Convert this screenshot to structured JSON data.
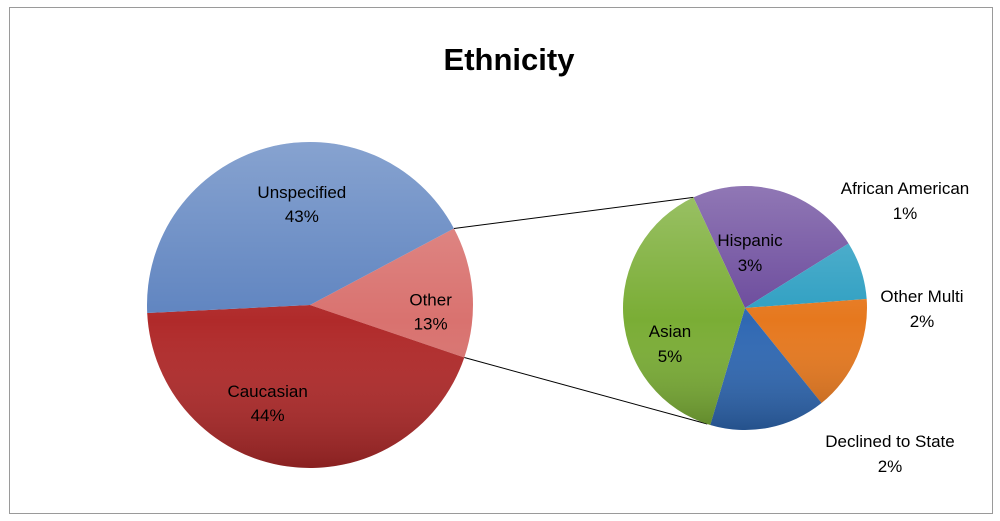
{
  "chart_data": {
    "type": "pie",
    "variant": "pie-of-pie",
    "title": "Ethnicity",
    "main_pie": [
      {
        "label": "Unspecified",
        "value": 43,
        "display": "43%",
        "color": "#5f84c0"
      },
      {
        "label": "Other",
        "value": 13,
        "display": "13%",
        "color": "#d9726f"
      },
      {
        "label": "Caucasian",
        "value": 44,
        "display": "44%",
        "color": "#b02a2a"
      }
    ],
    "secondary_pie": {
      "breakdown_of": "Other",
      "slices": [
        {
          "label": "Hispanic",
          "value": 3,
          "display": "3%",
          "color": "#6b4a9c"
        },
        {
          "label": "African American",
          "value": 1,
          "display": "1%",
          "color": "#2e9fc2"
        },
        {
          "label": "Other Multi",
          "value": 2,
          "display": "2%",
          "color": "#e6781e"
        },
        {
          "label": "Declined to State",
          "value": 2,
          "display": "2%",
          "color": "#2f68b3"
        },
        {
          "label": "Asian",
          "value": 5,
          "display": "5%",
          "color": "#7aad35"
        }
      ]
    },
    "legend": "none"
  }
}
